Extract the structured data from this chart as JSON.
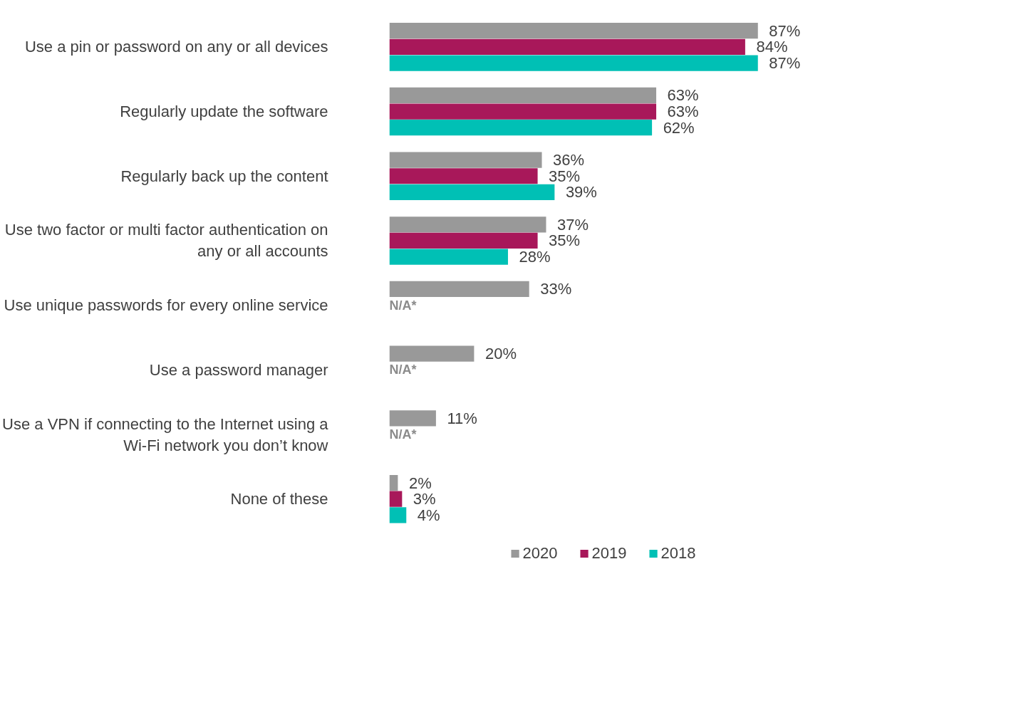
{
  "chart_data": {
    "type": "bar",
    "orientation": "horizontal",
    "categories": [
      "Use a pin or password on any or all devices",
      "Regularly update the software",
      "Regularly back up the content",
      "Use two factor or multi factor authentication on any or all accounts",
      "Use unique passwords for every online service",
      "Use a password manager",
      "Use a VPN if connecting to the Internet using a Wi-Fi network you don’t know",
      "None of these"
    ],
    "series": [
      {
        "name": "2020",
        "color": "#999999",
        "values": [
          87,
          63,
          36,
          37,
          33,
          20,
          11,
          2
        ],
        "value_labels": [
          "87%",
          "63%",
          "36%",
          "37%",
          "33%",
          "20%",
          "11%",
          "2%"
        ]
      },
      {
        "name": "2019",
        "color": "#a8185a",
        "values": [
          84,
          63,
          35,
          35,
          null,
          null,
          null,
          3
        ],
        "value_labels": [
          "84%",
          "63%",
          "35%",
          "35%",
          "N/A*",
          "N/A*",
          "N/A*",
          "3%"
        ]
      },
      {
        "name": "2018",
        "color": "#00c0b5",
        "values": [
          87,
          62,
          39,
          28,
          null,
          null,
          null,
          4
        ],
        "value_labels": [
          "87%",
          "62%",
          "39%",
          "28%",
          null,
          null,
          null,
          "4%"
        ]
      }
    ],
    "legend": "bottom",
    "grid": false
  }
}
